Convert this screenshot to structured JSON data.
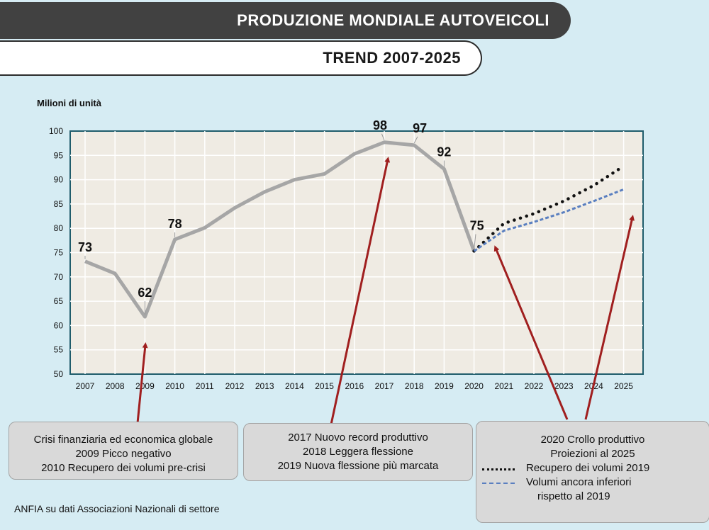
{
  "header": {
    "title": "PRODUZIONE MONDIALE AUTOVEICOLI",
    "subtitle": "TREND 2007-2025"
  },
  "chart_data": {
    "type": "line",
    "ylabel": "Milioni di unità",
    "xlabel": "",
    "ylim": [
      50,
      100
    ],
    "yticks": [
      50,
      55,
      60,
      65,
      70,
      75,
      80,
      85,
      90,
      95,
      100
    ],
    "grid": true,
    "plot_background": "#efebe3",
    "categories": [
      "2007",
      "2008",
      "2009",
      "2010",
      "2011",
      "2012",
      "2013",
      "2014",
      "2015",
      "2016",
      "2017",
      "2018",
      "2019",
      "2020",
      "2021",
      "2022",
      "2023",
      "2024",
      "2025"
    ],
    "series": [
      {
        "style": "solid",
        "color": "#a6a6a6",
        "x": [
          "2007",
          "2008",
          "2009",
          "2010",
          "2011",
          "2012",
          "2013",
          "2014",
          "2015",
          "2016",
          "2017",
          "2018",
          "2019",
          "2020"
        ],
        "values": [
          73.2,
          70.7,
          61.8,
          77.7,
          80.1,
          84.2,
          87.5,
          90.0,
          91.2,
          95.3,
          97.7,
          97.1,
          92.2,
          75.3
        ]
      },
      {
        "style": "dotted",
        "color": "#111111",
        "x": [
          "2020",
          "2021",
          "2022",
          "2023",
          "2024",
          "2025"
        ],
        "values": [
          75.3,
          81.0,
          83.0,
          85.6,
          88.8,
          92.8
        ]
      },
      {
        "style": "dashed",
        "color": "#5a7fc0",
        "x": [
          "2020",
          "2021",
          "2022",
          "2023",
          "2024",
          "2025"
        ],
        "values": [
          75.3,
          79.5,
          81.3,
          83.3,
          85.6,
          88.0
        ]
      }
    ],
    "data_labels": [
      {
        "x": "2007",
        "text": "73"
      },
      {
        "x": "2009",
        "text": "62"
      },
      {
        "x": "2010",
        "text": "78"
      },
      {
        "x": "2017",
        "text": "98"
      },
      {
        "x": "2018",
        "text": "97"
      },
      {
        "x": "2019",
        "text": "92"
      },
      {
        "x": "2020",
        "text": "75"
      }
    ]
  },
  "callouts": [
    {
      "lines": [
        "Crisi finanziaria ed economica globale",
        "2009 Picco negativo",
        "2010 Recupero dei volumi pre-crisi"
      ]
    },
    {
      "lines": [
        "2017 Nuovo record produttivo",
        "2018 Leggera flessione",
        "2019 Nuova flessione più marcata"
      ]
    },
    {
      "lines": [
        "2020 Crollo produttivo",
        "Proiezioni al 2025"
      ],
      "legend": [
        {
          "style": "dotted",
          "text": "Recupero dei volumi 2019"
        },
        {
          "style": "dashed",
          "text": "Volumi ancora inferiori",
          "continuation": "rispetto al 2019"
        }
      ]
    }
  ],
  "source": "ANFIA su dati Associazioni Nazionali di settore",
  "colors": {
    "page_background": "#d6ecf3",
    "title_banner": "#414141",
    "plot_border": "#1f5c6b",
    "arrow": "#a01f1f",
    "callout_background": "#d9d9d9"
  }
}
